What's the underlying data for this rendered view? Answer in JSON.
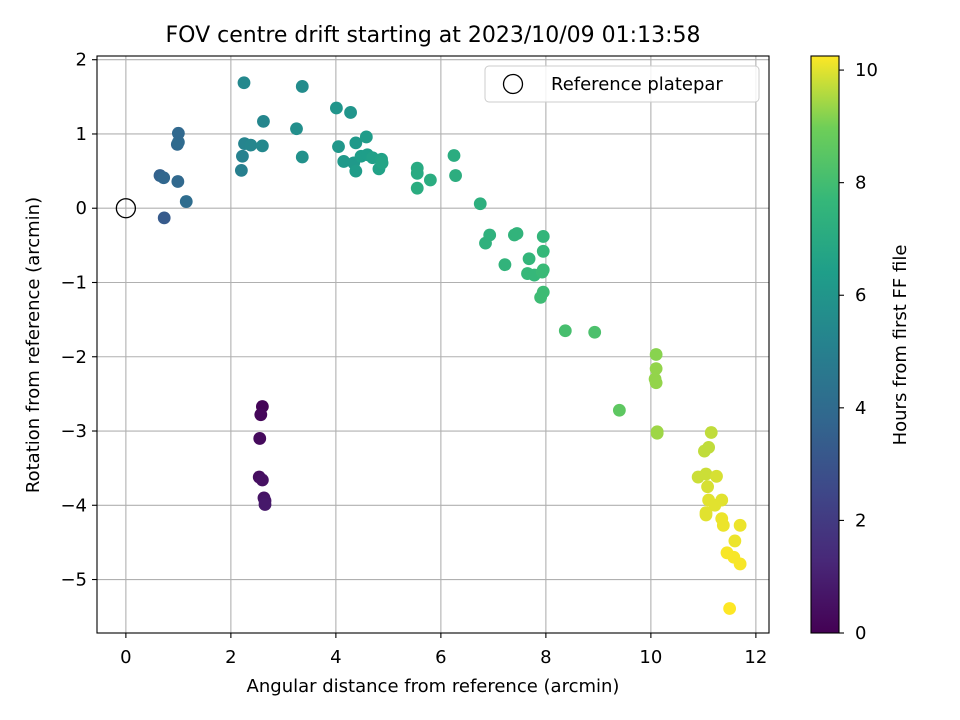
{
  "chart_data": {
    "type": "scatter",
    "title": "FOV centre drift starting at 2023/10/09 01:13:58",
    "xlabel": "Angular distance from reference (arcmin)",
    "ylabel": "Rotation from reference (arcmin)",
    "xlim": [
      -0.55,
      12.25
    ],
    "ylim": [
      -5.72,
      2.05
    ],
    "x_ticks": [
      0,
      2,
      4,
      6,
      8,
      10,
      12
    ],
    "x_tick_labels": [
      "0",
      "2",
      "4",
      "6",
      "8",
      "10",
      "12"
    ],
    "y_ticks": [
      2,
      1,
      0,
      -1,
      -2,
      -3,
      -4,
      -5
    ],
    "y_tick_labels": [
      "2",
      "1",
      "0",
      "−1",
      "−2",
      "−3",
      "−4",
      "−5"
    ],
    "grid": true,
    "colormap": "viridis",
    "colorbar": {
      "label": "Hours from first FF file",
      "range": [
        0,
        10.25
      ],
      "ticks": [
        0,
        2,
        4,
        6,
        8,
        10
      ],
      "tick_labels": [
        "0",
        "2",
        "4",
        "6",
        "8",
        "10"
      ]
    },
    "legend": {
      "position": "top-right",
      "entries": [
        {
          "label": "Reference platepar",
          "marker": "open-circle"
        }
      ]
    },
    "reference_point": {
      "x": 0,
      "y": 0
    },
    "points": [
      {
        "x": 2.6,
        "y": -2.67,
        "c": 0.1
      },
      {
        "x": 2.57,
        "y": -2.78,
        "c": 0.2
      },
      {
        "x": 2.55,
        "y": -3.1,
        "c": 0.3
      },
      {
        "x": 2.54,
        "y": -3.62,
        "c": 0.4
      },
      {
        "x": 2.6,
        "y": -3.66,
        "c": 0.5
      },
      {
        "x": 2.63,
        "y": -3.9,
        "c": 0.6
      },
      {
        "x": 2.65,
        "y": -3.94,
        "c": 0.7
      },
      {
        "x": 2.65,
        "y": -3.99,
        "c": 0.8
      },
      {
        "x": 0.73,
        "y": -0.13,
        "c": 3.3
      },
      {
        "x": 0.65,
        "y": 0.44,
        "c": 3.6
      },
      {
        "x": 0.72,
        "y": 0.41,
        "c": 3.8
      },
      {
        "x": 0.99,
        "y": 0.36,
        "c": 3.9
      },
      {
        "x": 1.15,
        "y": 0.09,
        "c": 4.1
      },
      {
        "x": 0.98,
        "y": 0.86,
        "c": 3.9
      },
      {
        "x": 1.0,
        "y": 0.89,
        "c": 4.0
      },
      {
        "x": 1.0,
        "y": 1.01,
        "c": 3.9
      },
      {
        "x": 2.2,
        "y": 0.51,
        "c": 5.0
      },
      {
        "x": 2.22,
        "y": 0.7,
        "c": 5.1
      },
      {
        "x": 2.26,
        "y": 0.87,
        "c": 5.2
      },
      {
        "x": 2.38,
        "y": 0.85,
        "c": 5.3
      },
      {
        "x": 2.6,
        "y": 0.84,
        "c": 5.4
      },
      {
        "x": 2.62,
        "y": 1.17,
        "c": 5.3
      },
      {
        "x": 2.25,
        "y": 1.69,
        "c": 5.4
      },
      {
        "x": 3.36,
        "y": 1.64,
        "c": 5.6
      },
      {
        "x": 3.25,
        "y": 1.07,
        "c": 5.7
      },
      {
        "x": 3.36,
        "y": 0.69,
        "c": 5.8
      },
      {
        "x": 4.01,
        "y": 1.35,
        "c": 6.0
      },
      {
        "x": 4.28,
        "y": 1.29,
        "c": 6.0
      },
      {
        "x": 4.05,
        "y": 0.83,
        "c": 6.1
      },
      {
        "x": 4.15,
        "y": 0.63,
        "c": 6.2
      },
      {
        "x": 4.34,
        "y": 0.61,
        "c": 6.2
      },
      {
        "x": 4.38,
        "y": 0.5,
        "c": 6.3
      },
      {
        "x": 4.38,
        "y": 0.88,
        "c": 6.2
      },
      {
        "x": 4.48,
        "y": 0.7,
        "c": 6.4
      },
      {
        "x": 4.58,
        "y": 0.96,
        "c": 6.3
      },
      {
        "x": 4.6,
        "y": 0.72,
        "c": 6.4
      },
      {
        "x": 4.7,
        "y": 0.68,
        "c": 6.5
      },
      {
        "x": 4.82,
        "y": 0.53,
        "c": 6.6
      },
      {
        "x": 4.87,
        "y": 0.66,
        "c": 6.6
      },
      {
        "x": 4.88,
        "y": 0.61,
        "c": 6.7
      },
      {
        "x": 5.55,
        "y": 0.54,
        "c": 7.0
      },
      {
        "x": 5.55,
        "y": 0.47,
        "c": 7.0
      },
      {
        "x": 5.55,
        "y": 0.27,
        "c": 7.1
      },
      {
        "x": 5.8,
        "y": 0.38,
        "c": 7.1
      },
      {
        "x": 6.25,
        "y": 0.71,
        "c": 7.1
      },
      {
        "x": 6.28,
        "y": 0.44,
        "c": 7.2
      },
      {
        "x": 6.75,
        "y": 0.06,
        "c": 7.3
      },
      {
        "x": 6.85,
        "y": -0.47,
        "c": 7.4
      },
      {
        "x": 6.93,
        "y": -0.36,
        "c": 7.4
      },
      {
        "x": 7.22,
        "y": -0.76,
        "c": 7.5
      },
      {
        "x": 7.4,
        "y": -0.36,
        "c": 7.5
      },
      {
        "x": 7.45,
        "y": -0.34,
        "c": 7.5
      },
      {
        "x": 7.68,
        "y": -0.68,
        "c": 7.6
      },
      {
        "x": 7.65,
        "y": -0.88,
        "c": 7.7
      },
      {
        "x": 7.78,
        "y": -0.9,
        "c": 7.7
      },
      {
        "x": 7.93,
        "y": -0.86,
        "c": 7.8
      },
      {
        "x": 7.95,
        "y": -0.83,
        "c": 7.8
      },
      {
        "x": 7.95,
        "y": -0.58,
        "c": 7.7
      },
      {
        "x": 7.95,
        "y": -0.38,
        "c": 7.6
      },
      {
        "x": 7.95,
        "y": -1.13,
        "c": 7.9
      },
      {
        "x": 7.9,
        "y": -1.2,
        "c": 7.9
      },
      {
        "x": 8.37,
        "y": -1.65,
        "c": 8.1
      },
      {
        "x": 8.93,
        "y": -1.67,
        "c": 8.2
      },
      {
        "x": 9.4,
        "y": -2.72,
        "c": 8.6
      },
      {
        "x": 10.1,
        "y": -1.97,
        "c": 9.2
      },
      {
        "x": 10.1,
        "y": -2.16,
        "c": 9.3
      },
      {
        "x": 10.08,
        "y": -2.3,
        "c": 9.3
      },
      {
        "x": 10.1,
        "y": -2.35,
        "c": 9.3
      },
      {
        "x": 10.12,
        "y": -3.01,
        "c": 9.4
      },
      {
        "x": 10.12,
        "y": -3.03,
        "c": 9.4
      },
      {
        "x": 11.15,
        "y": -3.02,
        "c": 9.7
      },
      {
        "x": 11.1,
        "y": -3.22,
        "c": 9.7
      },
      {
        "x": 11.02,
        "y": -3.27,
        "c": 9.7
      },
      {
        "x": 10.9,
        "y": -3.62,
        "c": 9.8
      },
      {
        "x": 11.05,
        "y": -3.58,
        "c": 9.8
      },
      {
        "x": 11.25,
        "y": -3.61,
        "c": 9.9
      },
      {
        "x": 11.08,
        "y": -3.75,
        "c": 9.9
      },
      {
        "x": 11.1,
        "y": -3.93,
        "c": 10.0
      },
      {
        "x": 11.22,
        "y": -4.0,
        "c": 10.0
      },
      {
        "x": 11.35,
        "y": -3.93,
        "c": 10.0
      },
      {
        "x": 11.05,
        "y": -4.1,
        "c": 10.0
      },
      {
        "x": 11.05,
        "y": -4.13,
        "c": 10.0
      },
      {
        "x": 11.35,
        "y": -4.18,
        "c": 10.1
      },
      {
        "x": 11.38,
        "y": -4.27,
        "c": 10.1
      },
      {
        "x": 11.6,
        "y": -4.48,
        "c": 10.1
      },
      {
        "x": 11.7,
        "y": -4.27,
        "c": 10.1
      },
      {
        "x": 11.45,
        "y": -4.64,
        "c": 10.2
      },
      {
        "x": 11.58,
        "y": -4.7,
        "c": 10.2
      },
      {
        "x": 11.7,
        "y": -4.79,
        "c": 10.2
      },
      {
        "x": 11.5,
        "y": -5.39,
        "c": 10.25
      }
    ]
  }
}
